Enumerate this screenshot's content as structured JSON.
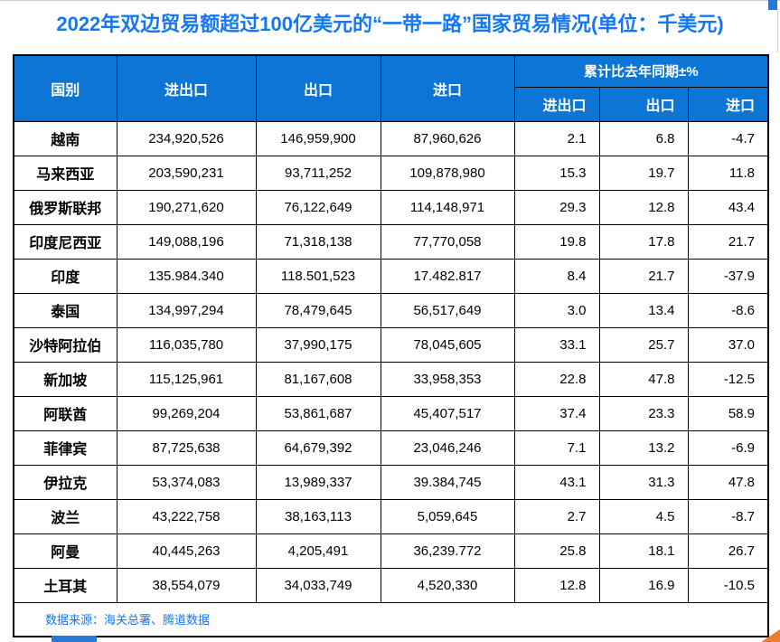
{
  "title": "2022年双边贸易额超过100亿美元的“一带一路”国家贸易情况(单位：千美元)",
  "source": "数据来源：海关总署、腾道数据",
  "colors": {
    "title_color": "#1477f5",
    "header_bg": "#0d75d6",
    "header_text": "#ffffff",
    "grid_color": "#000000",
    "source_color": "#1477f5",
    "fragment_blue": "#2a78d4",
    "fragment_orange": "#ed7d31"
  },
  "table": {
    "header": {
      "country": "国别",
      "total": "进出口",
      "export": "出口",
      "import": "进口",
      "yoy_group": "累计比去年同期±%",
      "yoy_total": "进出口",
      "yoy_export": "出口",
      "yoy_import": "进口"
    },
    "rows": [
      {
        "country": "越南",
        "total": "234,920,526",
        "export": "146,959,900",
        "import": "87,960,626",
        "yoy_total": "2.1",
        "yoy_export": "6.8",
        "yoy_import": "-4.7"
      },
      {
        "country": "马来西亚",
        "total": "203,590,231",
        "export": "93,711,252",
        "import": "109,878,980",
        "yoy_total": "15.3",
        "yoy_export": "19.7",
        "yoy_import": "11.8"
      },
      {
        "country": "俄罗斯联邦",
        "total": "190,271,620",
        "export": "76,122,649",
        "import": "114,148,971",
        "yoy_total": "29.3",
        "yoy_export": "12.8",
        "yoy_import": "43.4"
      },
      {
        "country": "印度尼西亚",
        "total": "149,088,196",
        "export": "71,318,138",
        "import": "77,770,058",
        "yoy_total": "19.8",
        "yoy_export": "17.8",
        "yoy_import": "21.7"
      },
      {
        "country": "印度",
        "total": "135.984.340",
        "export": "118.501,523",
        "import": "17.482.817",
        "yoy_total": "8.4",
        "yoy_export": "21.7",
        "yoy_import": "-37.9"
      },
      {
        "country": "泰国",
        "total": "134,997,294",
        "export": "78,479,645",
        "import": "56,517,649",
        "yoy_total": "3.0",
        "yoy_export": "13.4",
        "yoy_import": "-8.6"
      },
      {
        "country": "沙特阿拉伯",
        "total": "116,035,780",
        "export": "37,990,175",
        "import": "78,045,605",
        "yoy_total": "33.1",
        "yoy_export": "25.7",
        "yoy_import": "37.0"
      },
      {
        "country": "新加坡",
        "total": "115,125,961",
        "export": "81,167,608",
        "import": "33,958,353",
        "yoy_total": "22.8",
        "yoy_export": "47.8",
        "yoy_import": "-12.5"
      },
      {
        "country": "阿联酋",
        "total": "99,269,204",
        "export": "53,861,687",
        "import": "45,407,517",
        "yoy_total": "37.4",
        "yoy_export": "23.3",
        "yoy_import": "58.9"
      },
      {
        "country": "菲律宾",
        "total": "87,725,638",
        "export": "64,679,392",
        "import": "23,046,246",
        "yoy_total": "7.1",
        "yoy_export": "13.2",
        "yoy_import": "-6.9"
      },
      {
        "country": "伊拉克",
        "total": "53,374,083",
        "export": "13,989,337",
        "import": "39.384,745",
        "yoy_total": "43.1",
        "yoy_export": "31.3",
        "yoy_import": "47.8"
      },
      {
        "country": "波兰",
        "total": "43,222,758",
        "export": "38,163,113",
        "import": "5,059,645",
        "yoy_total": "2.7",
        "yoy_export": "4.5",
        "yoy_import": "-8.7"
      },
      {
        "country": "阿曼",
        "total": "40,445,263",
        "export": "4,205,491",
        "import": "36,239.772",
        "yoy_total": "25.8",
        "yoy_export": "18.1",
        "yoy_import": "26.7"
      },
      {
        "country": "土耳其",
        "total": "38,554,079",
        "export": "34,033,749",
        "import": "4,520,330",
        "yoy_total": "12.8",
        "yoy_export": "16.9",
        "yoy_import": "-10.5"
      }
    ]
  }
}
